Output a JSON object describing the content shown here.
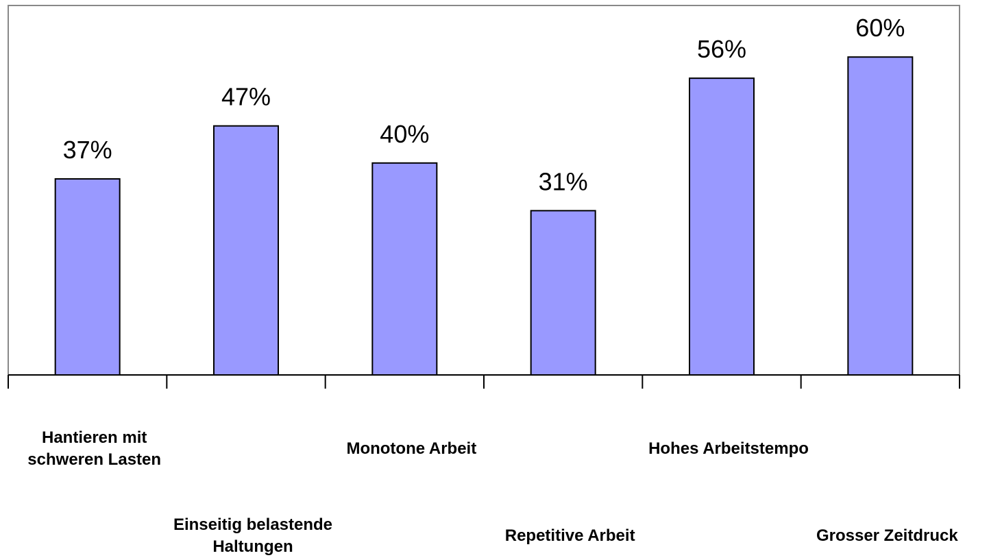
{
  "chart_data": {
    "type": "bar",
    "categories": [
      "Hantieren mit\nschweren Lasten",
      "Einseitig belastende\nHaltungen",
      "Monotone Arbeit",
      "Repetitive Arbeit",
      "Hohes Arbeitstempo",
      "Grosser Zeitdruck"
    ],
    "values": [
      37,
      47,
      40,
      31,
      56,
      60
    ],
    "value_labels": [
      "37%",
      "47%",
      "40%",
      "31%",
      "56%",
      "60%"
    ],
    "color": "#9999ff"
  }
}
